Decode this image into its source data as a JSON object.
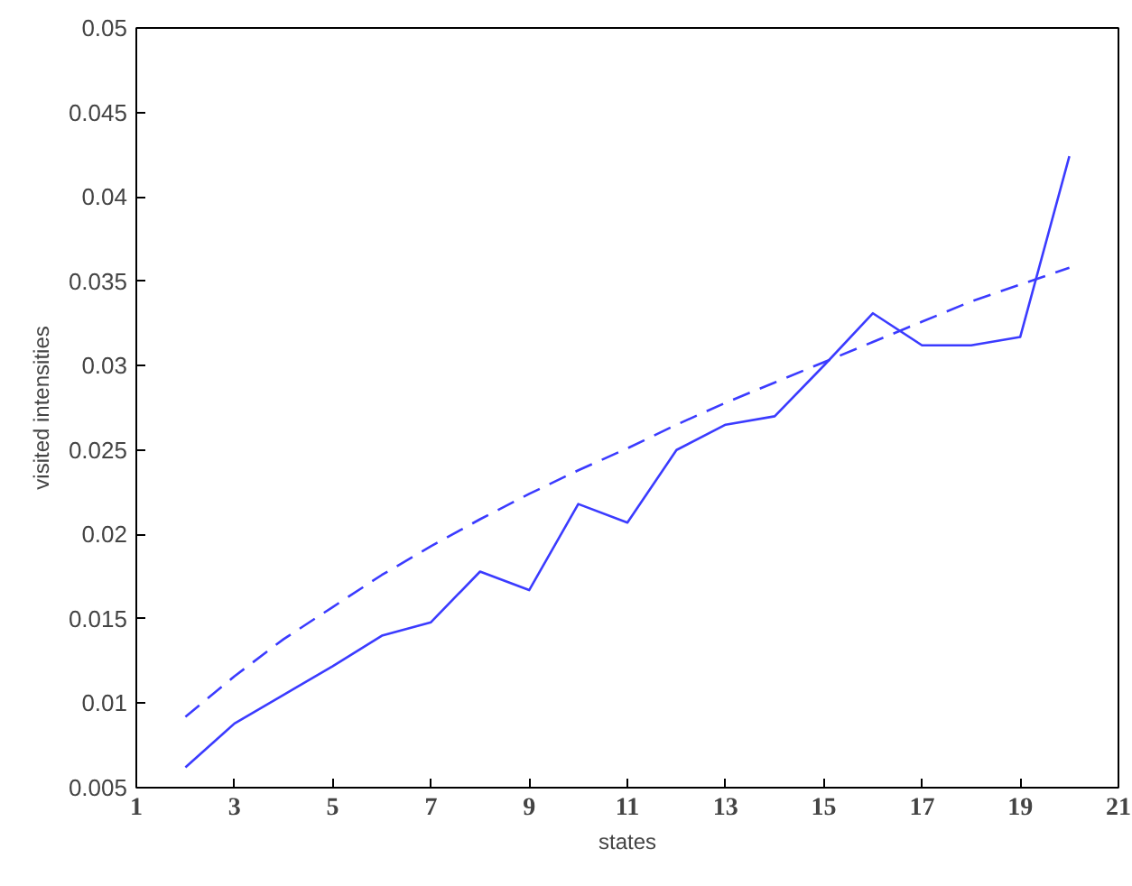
{
  "chart_data": {
    "type": "line",
    "xlabel": "states",
    "ylabel": "visited intensities",
    "x": [
      2,
      3,
      4,
      5,
      6,
      7,
      8,
      9,
      10,
      11,
      12,
      13,
      14,
      15,
      16,
      17,
      18,
      19,
      20
    ],
    "series": [
      {
        "color": "#3b3bff",
        "line_style": "solid",
        "values": [
          0.0062,
          0.0088,
          0.0105,
          0.0122,
          0.014,
          0.0148,
          0.0178,
          0.0167,
          0.0218,
          0.0207,
          0.025,
          0.0265,
          0.027,
          0.03,
          0.0331,
          0.0312,
          0.0312,
          0.0317,
          0.0424
        ]
      },
      {
        "color": "#3b3bff",
        "line_style": "dashed",
        "values": [
          0.0092,
          0.0116,
          0.0138,
          0.0157,
          0.0176,
          0.0193,
          0.0209,
          0.0224,
          0.0238,
          0.0251,
          0.0265,
          0.0278,
          0.029,
          0.0302,
          0.0314,
          0.0326,
          0.0338,
          0.0348,
          0.0358
        ]
      }
    ],
    "xlim": [
      1,
      21
    ],
    "xticks": [
      1,
      3,
      5,
      7,
      9,
      11,
      13,
      15,
      17,
      19,
      21
    ],
    "ylim": [
      0.005,
      0.05
    ],
    "yticks": [
      0.005,
      0.01,
      0.015,
      0.02,
      0.025,
      0.03,
      0.035,
      0.04,
      0.045,
      0.05
    ],
    "grid": false
  }
}
